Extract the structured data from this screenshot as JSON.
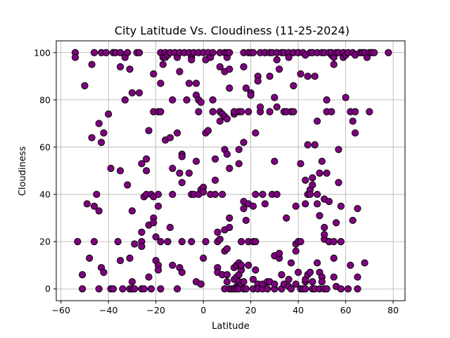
{
  "chart_data": {
    "type": "scatter",
    "title": "City Latitude Vs. Cloudiness (11-25-2024)",
    "xlabel": "Latitude",
    "ylabel": "Cloudiness",
    "xlim": [
      -62,
      85
    ],
    "ylim": [
      -5,
      105
    ],
    "xticks": [
      -60,
      -40,
      -20,
      0,
      20,
      40,
      60,
      80
    ],
    "yticks": [
      0,
      20,
      40,
      60,
      80,
      100
    ],
    "grid": true,
    "marker_color": "#800080",
    "marker_edge_color": "#000000",
    "points": [
      [
        -54,
        100
      ],
      [
        -54,
        98
      ],
      [
        -53,
        20
      ],
      [
        -51,
        0
      ],
      [
        -51,
        6
      ],
      [
        -50,
        86
      ],
      [
        -49,
        36
      ],
      [
        -48,
        13
      ],
      [
        -47,
        64
      ],
      [
        -47,
        95
      ],
      [
        -46,
        100
      ],
      [
        -46,
        35
      ],
      [
        -46,
        20
      ],
      [
        -45,
        40
      ],
      [
        -44,
        33
      ],
      [
        -44,
        70
      ],
      [
        -44,
        0
      ],
      [
        -43,
        62
      ],
      [
        -43,
        100
      ],
      [
        -43,
        9
      ],
      [
        -42,
        7
      ],
      [
        -42,
        66
      ],
      [
        -41,
        100
      ],
      [
        -40,
        74
      ],
      [
        -39,
        0
      ],
      [
        -39,
        51
      ],
      [
        -38,
        0
      ],
      [
        -38,
        100
      ],
      [
        -37,
        100
      ],
      [
        -36,
        20
      ],
      [
        -35,
        100
      ],
      [
        -35,
        50
      ],
      [
        -35,
        94
      ],
      [
        -35,
        12
      ],
      [
        -34,
        0
      ],
      [
        -33,
        80
      ],
      [
        -33,
        98
      ],
      [
        -32,
        100
      ],
      [
        -32,
        44
      ],
      [
        -31,
        13
      ],
      [
        -31,
        93
      ],
      [
        -31,
        0
      ],
      [
        -30,
        83
      ],
      [
        -30,
        0
      ],
      [
        -30,
        33
      ],
      [
        -30,
        3
      ],
      [
        -29,
        19
      ],
      [
        -29,
        0
      ],
      [
        -28,
        100
      ],
      [
        -27,
        83
      ],
      [
        -27,
        100
      ],
      [
        -26,
        0
      ],
      [
        -26,
        53
      ],
      [
        -26,
        24
      ],
      [
        -26,
        20
      ],
      [
        -26,
        18
      ],
      [
        -25,
        0
      ],
      [
        -25,
        39
      ],
      [
        -24,
        55
      ],
      [
        -24,
        50
      ],
      [
        -24,
        40
      ],
      [
        -23,
        67
      ],
      [
        -23,
        27
      ],
      [
        -23,
        5
      ],
      [
        -22,
        0
      ],
      [
        -22,
        40
      ],
      [
        -21,
        91
      ],
      [
        -21,
        75
      ],
      [
        -21,
        39
      ],
      [
        -21,
        30
      ],
      [
        -21,
        28
      ],
      [
        -20,
        22
      ],
      [
        -20,
        12
      ],
      [
        -19,
        75
      ],
      [
        -19,
        40
      ],
      [
        -19,
        35
      ],
      [
        -19,
        10
      ],
      [
        -19,
        8
      ],
      [
        -18,
        100
      ],
      [
        -18,
        87
      ],
      [
        -18,
        75
      ],
      [
        -18,
        20
      ],
      [
        -18,
        0
      ],
      [
        -17,
        95
      ],
      [
        -17,
        98
      ],
      [
        -16,
        100
      ],
      [
        -16,
        98
      ],
      [
        -16,
        63
      ],
      [
        -15,
        99
      ],
      [
        -15,
        20
      ],
      [
        -14,
        64
      ],
      [
        -14,
        26
      ],
      [
        -14,
        100
      ],
      [
        -13,
        51
      ],
      [
        -13,
        40
      ],
      [
        -13,
        10
      ],
      [
        -13,
        80
      ],
      [
        -12,
        100
      ],
      [
        -11,
        0
      ],
      [
        -11,
        98
      ],
      [
        -11,
        66
      ],
      [
        -10,
        49
      ],
      [
        -10,
        92
      ],
      [
        -10,
        9
      ],
      [
        -10,
        100
      ],
      [
        -9,
        57
      ],
      [
        -9,
        45
      ],
      [
        -9,
        20
      ],
      [
        -9,
        56
      ],
      [
        -9,
        7
      ],
      [
        -8,
        100
      ],
      [
        -7,
        80
      ],
      [
        -6,
        100
      ],
      [
        -6,
        87
      ],
      [
        -6,
        49
      ],
      [
        -5,
        40
      ],
      [
        -5,
        20
      ],
      [
        -5,
        98
      ],
      [
        -5,
        97
      ],
      [
        -4,
        40
      ],
      [
        -4,
        100
      ],
      [
        -3,
        87
      ],
      [
        -3,
        82
      ],
      [
        -3,
        3
      ],
      [
        -3,
        54
      ],
      [
        -2,
        100
      ],
      [
        -2,
        40
      ],
      [
        -2,
        80
      ],
      [
        -2,
        75
      ],
      [
        -1,
        79
      ],
      [
        -1,
        42
      ],
      [
        -1,
        2
      ],
      [
        -1,
        2
      ],
      [
        0,
        43
      ],
      [
        0,
        100
      ],
      [
        0,
        41
      ],
      [
        0,
        13
      ],
      [
        1,
        97
      ],
      [
        1,
        66
      ],
      [
        1,
        20
      ],
      [
        2,
        100
      ],
      [
        2,
        67
      ],
      [
        3,
        98
      ],
      [
        3,
        40
      ],
      [
        4,
        100
      ],
      [
        4,
        80
      ],
      [
        4,
        75
      ],
      [
        5,
        46
      ],
      [
        5,
        40
      ],
      [
        5,
        55
      ],
      [
        6,
        24
      ],
      [
        6,
        20
      ],
      [
        6,
        9
      ],
      [
        6,
        7
      ],
      [
        7,
        100
      ],
      [
        7,
        94
      ],
      [
        7,
        71
      ],
      [
        7,
        75
      ],
      [
        7,
        21
      ],
      [
        8,
        74
      ],
      [
        8,
        6
      ],
      [
        8,
        40
      ],
      [
        9,
        100
      ],
      [
        9,
        92
      ],
      [
        9,
        59
      ],
      [
        9,
        73
      ],
      [
        9,
        25
      ],
      [
        9,
        16
      ],
      [
        9,
        0
      ],
      [
        10,
        98
      ],
      [
        10,
        100
      ],
      [
        10,
        72
      ],
      [
        10,
        57
      ],
      [
        10,
        17
      ],
      [
        10,
        6
      ],
      [
        10,
        3
      ],
      [
        11,
        100
      ],
      [
        11,
        85
      ],
      [
        11,
        93
      ],
      [
        11,
        51
      ],
      [
        11,
        30
      ],
      [
        11,
        26
      ],
      [
        11,
        0
      ],
      [
        12,
        0
      ],
      [
        13,
        74
      ],
      [
        13,
        75
      ],
      [
        13,
        4
      ],
      [
        13,
        9
      ],
      [
        13,
        0
      ],
      [
        14,
        10
      ],
      [
        14,
        5
      ],
      [
        14,
        1
      ],
      [
        14,
        0
      ],
      [
        15,
        75
      ],
      [
        15,
        59
      ],
      [
        15,
        53
      ],
      [
        15,
        11
      ],
      [
        15,
        6
      ],
      [
        15,
        3
      ],
      [
        15,
        0
      ],
      [
        16,
        20
      ],
      [
        16,
        75
      ],
      [
        16,
        8
      ],
      [
        16,
        2
      ],
      [
        16,
        10
      ],
      [
        17,
        100
      ],
      [
        17,
        94
      ],
      [
        17,
        62
      ],
      [
        17,
        34
      ],
      [
        17,
        37
      ],
      [
        17,
        3
      ],
      [
        17,
        0
      ],
      [
        18,
        85
      ],
      [
        18,
        29
      ],
      [
        18,
        0
      ],
      [
        19,
        75
      ],
      [
        19,
        100
      ],
      [
        19,
        36
      ],
      [
        19,
        20
      ],
      [
        19,
        10
      ],
      [
        20,
        83
      ],
      [
        20,
        100
      ],
      [
        20,
        82
      ],
      [
        21,
        100
      ],
      [
        21,
        20
      ],
      [
        21,
        35
      ],
      [
        21,
        4
      ],
      [
        21,
        0
      ],
      [
        22,
        66
      ],
      [
        22,
        8
      ],
      [
        22,
        40
      ],
      [
        22,
        20
      ],
      [
        23,
        90
      ],
      [
        23,
        88
      ],
      [
        23,
        2
      ],
      [
        23,
        0
      ],
      [
        24,
        75
      ],
      [
        24,
        77
      ],
      [
        24,
        100
      ],
      [
        25,
        40
      ],
      [
        25,
        0
      ],
      [
        25,
        2
      ],
      [
        26,
        36
      ],
      [
        26,
        100
      ],
      [
        26,
        100
      ],
      [
        27,
        0
      ],
      [
        27,
        3
      ],
      [
        28,
        100
      ],
      [
        28,
        90
      ],
      [
        28,
        75
      ],
      [
        28,
        3
      ],
      [
        29,
        100
      ],
      [
        29,
        40
      ],
      [
        30,
        81
      ],
      [
        30,
        54
      ],
      [
        30,
        14
      ],
      [
        30,
        0
      ],
      [
        30,
        2
      ],
      [
        31,
        100
      ],
      [
        31,
        40
      ],
      [
        31,
        97
      ],
      [
        31,
        77
      ],
      [
        32,
        13
      ],
      [
        32,
        93
      ],
      [
        32,
        15
      ],
      [
        33,
        6
      ],
      [
        33,
        100
      ],
      [
        33,
        0
      ],
      [
        34,
        100
      ],
      [
        34,
        75
      ],
      [
        34,
        2
      ],
      [
        35,
        75
      ],
      [
        35,
        30
      ],
      [
        36,
        100
      ],
      [
        36,
        4
      ],
      [
        36,
        98
      ],
      [
        36,
        1
      ],
      [
        37,
        75
      ],
      [
        37,
        11
      ],
      [
        37,
        0
      ],
      [
        38,
        86
      ],
      [
        38,
        75
      ],
      [
        38,
        100
      ],
      [
        39,
        2
      ],
      [
        39,
        35
      ],
      [
        39,
        16
      ],
      [
        39,
        19
      ],
      [
        40,
        100
      ],
      [
        40,
        7
      ],
      [
        40,
        100
      ],
      [
        40,
        20
      ],
      [
        41,
        53
      ],
      [
        41,
        91
      ],
      [
        41,
        20
      ],
      [
        41,
        0
      ],
      [
        42,
        0
      ],
      [
        42,
        100
      ],
      [
        43,
        99
      ],
      [
        43,
        3
      ],
      [
        43,
        4
      ],
      [
        43,
        36
      ],
      [
        43,
        46
      ],
      [
        43,
        0
      ],
      [
        44,
        90
      ],
      [
        44,
        61
      ],
      [
        44,
        40
      ],
      [
        44,
        6
      ],
      [
        45,
        7
      ],
      [
        45,
        100
      ],
      [
        45,
        42
      ],
      [
        45,
        40
      ],
      [
        46,
        100
      ],
      [
        46,
        47
      ],
      [
        46,
        44
      ],
      [
        46,
        3
      ],
      [
        46,
        0
      ],
      [
        47,
        90
      ],
      [
        47,
        61
      ],
      [
        47,
        0
      ],
      [
        48,
        100
      ],
      [
        48,
        11
      ],
      [
        48,
        36
      ],
      [
        48,
        40
      ],
      [
        48,
        71
      ],
      [
        49,
        7
      ],
      [
        49,
        31
      ],
      [
        49,
        0
      ],
      [
        49,
        49
      ],
      [
        50,
        100
      ],
      [
        50,
        54
      ],
      [
        50,
        5
      ],
      [
        50,
        3
      ],
      [
        51,
        100
      ],
      [
        51,
        21
      ],
      [
        51,
        38
      ],
      [
        51,
        23
      ],
      [
        51,
        26
      ],
      [
        51,
        0
      ],
      [
        52,
        49
      ],
      [
        52,
        80
      ],
      [
        52,
        75
      ],
      [
        52,
        0
      ],
      [
        53,
        100
      ],
      [
        53,
        37
      ],
      [
        53,
        20
      ],
      [
        53,
        20
      ],
      [
        54,
        75
      ],
      [
        54,
        99
      ],
      [
        54,
        100
      ],
      [
        55,
        5
      ],
      [
        55,
        20
      ],
      [
        55,
        95
      ],
      [
        55,
        98
      ],
      [
        55,
        13
      ],
      [
        56,
        1
      ],
      [
        56,
        100
      ],
      [
        56,
        28
      ],
      [
        57,
        59
      ],
      [
        57,
        45
      ],
      [
        57,
        100
      ],
      [
        58,
        20
      ],
      [
        58,
        0
      ],
      [
        58,
        35
      ],
      [
        59,
        100
      ],
      [
        59,
        98
      ],
      [
        60,
        99
      ],
      [
        60,
        81
      ],
      [
        61,
        0
      ],
      [
        61,
        100
      ],
      [
        62,
        75
      ],
      [
        62,
        10
      ],
      [
        63,
        29
      ],
      [
        63,
        100
      ],
      [
        63,
        71
      ],
      [
        64,
        66
      ],
      [
        64,
        75
      ],
      [
        64,
        99
      ],
      [
        65,
        5
      ],
      [
        65,
        0
      ],
      [
        65,
        34
      ],
      [
        66,
        100
      ],
      [
        67,
        100
      ],
      [
        68,
        11
      ],
      [
        68,
        100
      ],
      [
        69,
        98
      ],
      [
        70,
        100
      ],
      [
        70,
        75
      ],
      [
        71,
        100
      ],
      [
        72,
        100
      ],
      [
        78,
        100
      ]
    ]
  }
}
